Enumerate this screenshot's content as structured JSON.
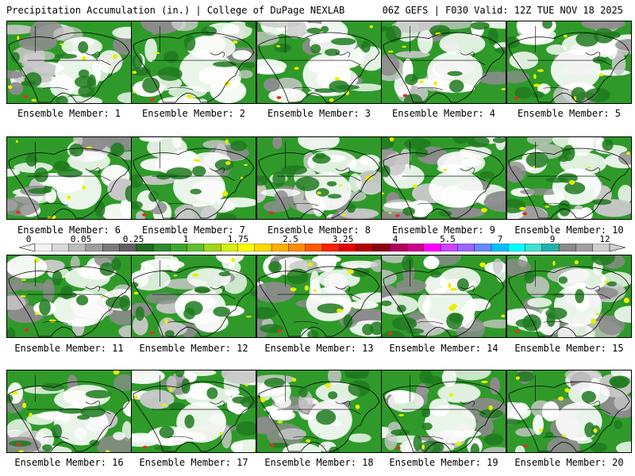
{
  "header": {
    "title_left": "Precipitation Accumulation (in.) | College of DuPage NEXLAB",
    "title_right": "06Z GEFS | F030 Valid: 12Z TUE NOV 18 2025"
  },
  "panel_label_prefix": "Ensemble Member: ",
  "members": [
    1,
    2,
    3,
    4,
    5,
    6,
    7,
    8,
    9,
    10,
    11,
    12,
    13,
    14,
    15,
    16,
    17,
    18,
    19,
    20
  ],
  "colorbar": {
    "tick_labels": [
      "0",
      "0.05",
      "0.25",
      "1",
      "1.75",
      "2.5",
      "3.25",
      "4",
      "5.5",
      "7",
      "9",
      "12"
    ],
    "colors": [
      "#f2f2f2",
      "#d9d9d9",
      "#bdbdbd",
      "#9e9e9e",
      "#7a7a7a",
      "#5f5f5f",
      "#1f6b1f",
      "#2e8b2e",
      "#3fa532",
      "#60c030",
      "#9fd61a",
      "#d8ee10",
      "#ffff00",
      "#ffd700",
      "#ffb000",
      "#ff8c00",
      "#ff5a00",
      "#ff2000",
      "#e00000",
      "#b40000",
      "#8c0010",
      "#b0005a",
      "#d0008c",
      "#ff00ff",
      "#cc44ff",
      "#9966ff",
      "#6688ff",
      "#00bfff",
      "#00ffff",
      "#40e0d0",
      "#20b2aa",
      "#8a8a8a",
      "#a0a0a0",
      "#cfcfcf"
    ]
  },
  "map_colors": {
    "background": "#ffffff",
    "light_gray": "#c8c8c8",
    "dark_gray": "#8c8c8c",
    "green": "#2f9a2a",
    "dark_green": "#1f7a1f",
    "yellow": "#e8f000",
    "red": "#e03020",
    "outline": "#000000"
  }
}
